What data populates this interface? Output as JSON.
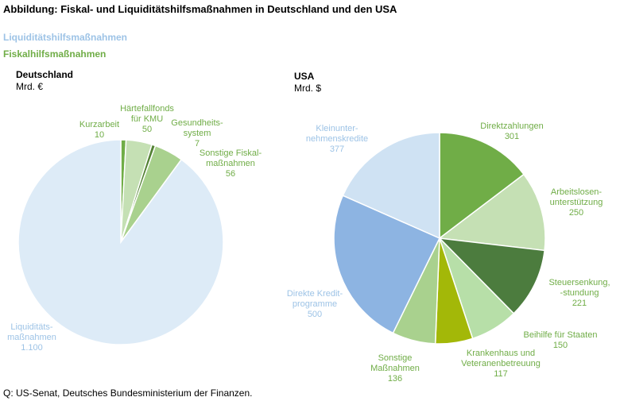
{
  "title": "Abbildung: Fiskal- und Liquiditätshilfsmaßnahmen in Deutschland und den USA",
  "legend": {
    "liquidity": "Liquiditätshilfsmaßnahmen",
    "fiscal": "Fiskalhilfsmaßnahmen"
  },
  "source": "Q: US-Senat, Deutsches Bundesministerium der  Finanzen.",
  "colors": {
    "liquidity_label": "#9dc3e6",
    "fiscal_label": "#70ad47"
  },
  "chart_data": [
    {
      "type": "pie",
      "title": "Deutschland",
      "unit": "Mrd. €",
      "slices": [
        {
          "label": "Kurzarbeit",
          "value": 10,
          "display": "10",
          "color": "#70ad47"
        },
        {
          "label": "Härtefallfonds für KMU",
          "value": 50,
          "display": "50",
          "color": "#c5e0b4"
        },
        {
          "label": "Gesundheits-system",
          "value": 7,
          "display": "7",
          "color": "#548235"
        },
        {
          "label": "Sonstige Fiskal-maßnahmen",
          "value": 56,
          "display": "56",
          "color": "#a9d18e"
        },
        {
          "label": "Liquiditäts-maßnahmen",
          "value": 1100,
          "display": "1.100",
          "color": "#ddebf7"
        }
      ]
    },
    {
      "type": "pie",
      "title": "USA",
      "unit": "Mrd. $",
      "slices": [
        {
          "label": "Direktzahlungen",
          "value": 301,
          "display": "301",
          "color": "#70ad47"
        },
        {
          "label": "Arbeitslosen-unterstützung",
          "value": 250,
          "display": "250",
          "color": "#c5e0b4"
        },
        {
          "label": "Steuersenkung, -stundung",
          "value": 221,
          "display": "221",
          "color": "#4c7c3e"
        },
        {
          "label": "Beihilfe für Staaten",
          "value": 150,
          "display": "150",
          "color": "#b7dfa8"
        },
        {
          "label": "Krankenhaus und Veteranenbetreuung",
          "value": 117,
          "display": "117",
          "color": "#a3b808"
        },
        {
          "label": "Sonstige Maßnahmen",
          "value": 136,
          "display": "136",
          "color": "#a9d18e"
        },
        {
          "label": "Direkte Kredit-programme",
          "value": 500,
          "display": "500",
          "color": "#8db4e2"
        },
        {
          "label": "Kleinunter-nehmenskredite",
          "value": 377,
          "display": "377",
          "color": "#cfe2f3"
        }
      ]
    }
  ]
}
